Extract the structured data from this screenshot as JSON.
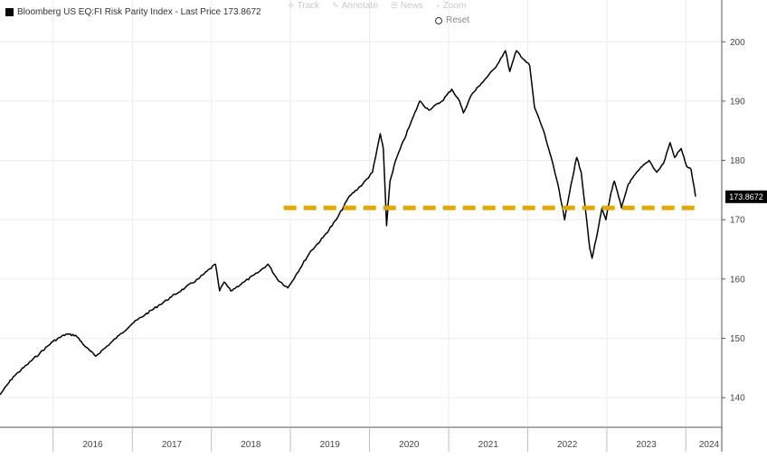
{
  "legend": {
    "title": "Bloomberg US EQ:FI Risk Parity Index - Last Price 173.8672"
  },
  "toolbar": {
    "items": [
      {
        "label": "Track",
        "icon": "crosshair-icon"
      },
      {
        "label": "Annotate",
        "icon": "pencil-icon"
      },
      {
        "label": "News",
        "icon": "news-icon"
      },
      {
        "label": "Zoom",
        "icon": "magnifier-icon"
      }
    ],
    "reset_label": "Reset"
  },
  "chart_data": {
    "type": "line",
    "series": [
      {
        "name": "Bloomberg US EQ:FI Risk Parity Index",
        "color": "#000000",
        "last_value": 173.8672,
        "last_value_label": "173.8672",
        "points": [
          [
            "2015-05-01",
            140.5
          ],
          [
            "2015-07-01",
            143.5
          ],
          [
            "2015-09-01",
            145.5
          ],
          [
            "2015-11-01",
            147.5
          ],
          [
            "2016-01-01",
            149.5
          ],
          [
            "2016-03-01",
            150.7
          ],
          [
            "2016-04-15",
            150.5
          ],
          [
            "2016-06-01",
            148.5
          ],
          [
            "2016-07-15",
            147.0
          ],
          [
            "2016-09-01",
            148.5
          ],
          [
            "2016-11-01",
            150.5
          ],
          [
            "2017-01-01",
            152.5
          ],
          [
            "2017-03-01",
            154.0
          ],
          [
            "2017-05-01",
            155.5
          ],
          [
            "2017-07-01",
            157.0
          ],
          [
            "2017-09-01",
            158.5
          ],
          [
            "2017-11-01",
            160.0
          ],
          [
            "2018-01-20",
            162.5
          ],
          [
            "2018-02-08",
            158.0
          ],
          [
            "2018-03-01",
            159.5
          ],
          [
            "2018-04-01",
            158.0
          ],
          [
            "2018-06-01",
            159.5
          ],
          [
            "2018-08-01",
            161.0
          ],
          [
            "2018-09-20",
            162.5
          ],
          [
            "2018-11-01",
            160.0
          ],
          [
            "2018-12-20",
            158.5
          ],
          [
            "2019-02-01",
            161.0
          ],
          [
            "2019-04-01",
            164.5
          ],
          [
            "2019-06-01",
            167.0
          ],
          [
            "2019-08-01",
            170.0
          ],
          [
            "2019-10-01",
            174.0
          ],
          [
            "2019-12-01",
            176.0
          ],
          [
            "2020-01-15",
            178.0
          ],
          [
            "2020-02-20",
            184.5
          ],
          [
            "2020-03-05",
            182.0
          ],
          [
            "2020-03-20",
            169.0
          ],
          [
            "2020-04-05",
            176.5
          ],
          [
            "2020-05-01",
            180.0
          ],
          [
            "2020-07-01",
            185.5
          ],
          [
            "2020-08-20",
            190.0
          ],
          [
            "2020-10-01",
            188.5
          ],
          [
            "2020-12-01",
            190.0
          ],
          [
            "2021-01-15",
            192.0
          ],
          [
            "2021-02-20",
            190.0
          ],
          [
            "2021-03-10",
            188.0
          ],
          [
            "2021-04-15",
            191.0
          ],
          [
            "2021-06-01",
            193.0
          ],
          [
            "2021-08-01",
            195.5
          ],
          [
            "2021-09-20",
            198.5
          ],
          [
            "2021-10-10",
            195.0
          ],
          [
            "2021-11-10",
            198.5
          ],
          [
            "2021-12-15",
            197.0
          ],
          [
            "2022-01-10",
            196.0
          ],
          [
            "2022-02-01",
            189.0
          ],
          [
            "2022-03-15",
            185.0
          ],
          [
            "2022-04-15",
            181.0
          ],
          [
            "2022-05-20",
            176.0
          ],
          [
            "2022-06-20",
            170.0
          ],
          [
            "2022-07-20",
            176.0
          ],
          [
            "2022-08-15",
            180.5
          ],
          [
            "2022-09-05",
            178.0
          ],
          [
            "2022-09-30",
            170.0
          ],
          [
            "2022-10-15",
            165.0
          ],
          [
            "2022-10-25",
            163.5
          ],
          [
            "2022-11-20",
            168.0
          ],
          [
            "2022-12-10",
            172.0
          ],
          [
            "2022-12-28",
            170.0
          ],
          [
            "2023-01-20",
            174.5
          ],
          [
            "2023-02-05",
            176.5
          ],
          [
            "2023-03-10",
            172.0
          ],
          [
            "2023-04-10",
            176.0
          ],
          [
            "2023-06-01",
            178.5
          ],
          [
            "2023-07-15",
            180.0
          ],
          [
            "2023-08-20",
            178.0
          ],
          [
            "2023-09-20",
            179.5
          ],
          [
            "2023-10-20",
            183.0
          ],
          [
            "2023-11-10",
            180.5
          ],
          [
            "2023-12-10",
            182.0
          ],
          [
            "2024-01-05",
            179.0
          ],
          [
            "2024-01-25",
            178.5
          ],
          [
            "2024-02-15",
            173.9
          ]
        ]
      }
    ],
    "reference_line": {
      "value": 172,
      "from": "2018-12-01",
      "to": "2024-02-10",
      "color": "#e0a800",
      "style": "dashed"
    },
    "x_ticks": [
      {
        "label": "2016",
        "date": "2016-01-01"
      },
      {
        "label": "2017",
        "date": "2017-01-01"
      },
      {
        "label": "2018",
        "date": "2018-01-01"
      },
      {
        "label": "2019",
        "date": "2019-01-01"
      },
      {
        "label": "2020",
        "date": "2020-01-01"
      },
      {
        "label": "2021",
        "date": "2021-01-01"
      },
      {
        "label": "2022",
        "date": "2022-01-01"
      },
      {
        "label": "2023",
        "date": "2023-01-01"
      },
      {
        "label": "2024",
        "date": "2024-01-01"
      }
    ],
    "xlim": [
      "2015-05-01",
      "2024-06-15"
    ],
    "y_ticks": [
      140,
      150,
      160,
      170,
      180,
      190,
      200
    ],
    "ylim": [
      135,
      204
    ],
    "y_axis_side": "right",
    "grid": true
  }
}
